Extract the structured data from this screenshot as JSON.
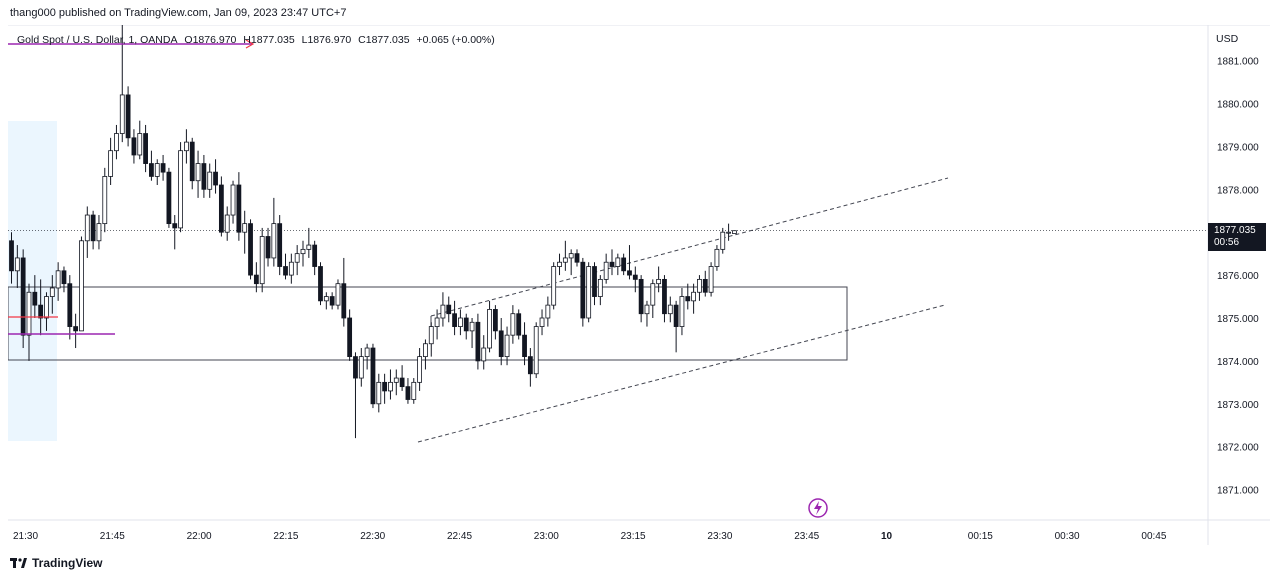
{
  "header": {
    "published": "thang000 published on TradingView.com, Jan 09, 2023 23:47 UTC+7"
  },
  "legend": {
    "symbol": "Gold Spot / U.S. Dollar, 1, OANDA",
    "open": "O1876.970",
    "high": "H1877.035",
    "low": "L1876.970",
    "close": "C1877.035",
    "change": "+0.065 (+0.00%)"
  },
  "axis": {
    "currency": "USD"
  },
  "last_price": {
    "value": "1877.035",
    "countdown": "00:56"
  },
  "footer": {
    "brand": "TradingView"
  },
  "colors": {
    "up": "#ffffff",
    "down": "#131722",
    "purple": "#9c27b0",
    "red": "#f23645",
    "zone": "#e3f2fd"
  },
  "chart_data": {
    "type": "candlestick",
    "ylim": [
      1870.5,
      1882.0
    ],
    "y_ticks": [
      "1881.000",
      "1880.000",
      "1879.000",
      "1878.000",
      "1877.000",
      "1876.000",
      "1875.000",
      "1874.000",
      "1873.000",
      "1872.000",
      "1871.000"
    ],
    "x_ticks": [
      "21:30",
      "21:45",
      "22:00",
      "22:15",
      "22:30",
      "22:45",
      "23:00",
      "23:15",
      "23:30",
      "23:45",
      "10",
      "00:15",
      "00:30",
      "00:45"
    ],
    "x_tick_bold": "10",
    "candles": [
      [
        1876.8,
        1877.0,
        1875.8,
        1876.1
      ],
      [
        1876.1,
        1876.7,
        1875.7,
        1876.4
      ],
      [
        1876.4,
        1876.6,
        1874.3,
        1874.6
      ],
      [
        1874.6,
        1875.8,
        1874.0,
        1875.6
      ],
      [
        1875.6,
        1876.0,
        1875.0,
        1875.3
      ],
      [
        1875.3,
        1875.9,
        1874.6,
        1875.0
      ],
      [
        1875.0,
        1875.6,
        1874.7,
        1875.5
      ],
      [
        1875.5,
        1876.0,
        1875.1,
        1875.7
      ],
      [
        1875.7,
        1876.3,
        1875.4,
        1876.1
      ],
      [
        1876.1,
        1876.2,
        1875.6,
        1875.8
      ],
      [
        1875.8,
        1876.0,
        1874.5,
        1874.8
      ],
      [
        1874.8,
        1875.1,
        1874.3,
        1874.7
      ],
      [
        1874.7,
        1876.9,
        1874.7,
        1876.8
      ],
      [
        1876.8,
        1877.6,
        1876.4,
        1877.4
      ],
      [
        1877.4,
        1877.5,
        1876.6,
        1876.8
      ],
      [
        1876.8,
        1877.4,
        1876.6,
        1877.2
      ],
      [
        1877.2,
        1878.5,
        1877.0,
        1878.3
      ],
      [
        1878.3,
        1879.2,
        1878.1,
        1878.9
      ],
      [
        1878.9,
        1879.5,
        1878.7,
        1879.3
      ],
      [
        1879.3,
        1882.4,
        1879.1,
        1880.2
      ],
      [
        1880.2,
        1880.4,
        1879.0,
        1879.2
      ],
      [
        1879.2,
        1879.4,
        1878.6,
        1878.8
      ],
      [
        1878.8,
        1879.6,
        1878.7,
        1879.3
      ],
      [
        1879.3,
        1879.5,
        1878.4,
        1878.6
      ],
      [
        1878.6,
        1878.9,
        1878.2,
        1878.3
      ],
      [
        1878.3,
        1878.7,
        1878.1,
        1878.6
      ],
      [
        1878.6,
        1878.8,
        1878.2,
        1878.4
      ],
      [
        1878.4,
        1878.5,
        1877.1,
        1877.2
      ],
      [
        1877.2,
        1877.4,
        1876.6,
        1877.1
      ],
      [
        1877.1,
        1879.1,
        1877.0,
        1878.9
      ],
      [
        1878.9,
        1879.4,
        1878.6,
        1879.1
      ],
      [
        1879.1,
        1879.2,
        1878.0,
        1878.2
      ],
      [
        1878.2,
        1878.9,
        1877.8,
        1878.6
      ],
      [
        1878.6,
        1878.8,
        1877.8,
        1878.0
      ],
      [
        1878.0,
        1878.6,
        1877.8,
        1878.4
      ],
      [
        1878.4,
        1878.7,
        1877.9,
        1878.1
      ],
      [
        1878.1,
        1878.3,
        1876.9,
        1877.0
      ],
      [
        1877.0,
        1877.6,
        1876.8,
        1877.4
      ],
      [
        1877.4,
        1878.2,
        1877.2,
        1878.1
      ],
      [
        1878.1,
        1878.4,
        1876.8,
        1877.0
      ],
      [
        1877.0,
        1877.5,
        1876.5,
        1877.2
      ],
      [
        1877.2,
        1877.3,
        1875.9,
        1876.0
      ],
      [
        1876.0,
        1876.3,
        1875.6,
        1875.8
      ],
      [
        1875.8,
        1877.1,
        1875.6,
        1876.9
      ],
      [
        1876.9,
        1877.1,
        1876.2,
        1876.4
      ],
      [
        1876.4,
        1877.8,
        1876.2,
        1877.2
      ],
      [
        1877.2,
        1877.4,
        1876.0,
        1876.2
      ],
      [
        1876.2,
        1876.5,
        1875.9,
        1876.0
      ],
      [
        1876.0,
        1876.5,
        1875.8,
        1876.3
      ],
      [
        1876.3,
        1876.7,
        1876.0,
        1876.5
      ],
      [
        1876.5,
        1876.8,
        1876.2,
        1876.6
      ],
      [
        1876.6,
        1877.1,
        1876.4,
        1876.7
      ],
      [
        1876.7,
        1876.8,
        1876.0,
        1876.2
      ],
      [
        1876.2,
        1876.3,
        1875.3,
        1875.4
      ],
      [
        1875.4,
        1875.6,
        1875.2,
        1875.5
      ],
      [
        1875.5,
        1875.6,
        1875.2,
        1875.3
      ],
      [
        1875.3,
        1875.9,
        1875.2,
        1875.8
      ],
      [
        1875.8,
        1876.4,
        1874.8,
        1875.0
      ],
      [
        1875.0,
        1875.2,
        1874.0,
        1874.1
      ],
      [
        1874.1,
        1874.2,
        1872.2,
        1873.6
      ],
      [
        1873.6,
        1874.3,
        1873.4,
        1874.1
      ],
      [
        1874.1,
        1874.4,
        1873.8,
        1874.3
      ],
      [
        1874.3,
        1874.4,
        1872.9,
        1873.0
      ],
      [
        1873.0,
        1873.7,
        1872.8,
        1873.5
      ],
      [
        1873.5,
        1873.7,
        1873.0,
        1873.3
      ],
      [
        1873.3,
        1873.8,
        1873.1,
        1873.5
      ],
      [
        1873.5,
        1873.8,
        1873.2,
        1873.6
      ],
      [
        1873.6,
        1873.9,
        1873.3,
        1873.4
      ],
      [
        1873.4,
        1873.6,
        1873.0,
        1873.1
      ],
      [
        1873.1,
        1873.6,
        1873.0,
        1873.5
      ],
      [
        1873.5,
        1874.3,
        1873.3,
        1874.1
      ],
      [
        1874.1,
        1874.5,
        1873.8,
        1874.4
      ],
      [
        1874.4,
        1874.9,
        1874.1,
        1874.8
      ],
      [
        1874.8,
        1875.2,
        1874.5,
        1875.0
      ],
      [
        1875.0,
        1875.6,
        1874.8,
        1875.3
      ],
      [
        1875.3,
        1875.5,
        1874.9,
        1875.1
      ],
      [
        1875.1,
        1875.4,
        1874.6,
        1874.8
      ],
      [
        1874.8,
        1875.2,
        1874.6,
        1875.0
      ],
      [
        1875.0,
        1875.1,
        1874.5,
        1874.7
      ],
      [
        1874.7,
        1875.0,
        1874.3,
        1874.9
      ],
      [
        1874.9,
        1875.1,
        1873.8,
        1874.0
      ],
      [
        1874.0,
        1874.6,
        1873.8,
        1874.3
      ],
      [
        1874.3,
        1875.4,
        1874.2,
        1875.2
      ],
      [
        1875.2,
        1875.3,
        1874.5,
        1874.7
      ],
      [
        1874.7,
        1875.0,
        1873.9,
        1874.1
      ],
      [
        1874.1,
        1874.8,
        1873.9,
        1874.6
      ],
      [
        1874.6,
        1875.3,
        1874.4,
        1875.1
      ],
      [
        1875.1,
        1875.2,
        1874.5,
        1874.6
      ],
      [
        1874.6,
        1874.9,
        1873.9,
        1874.1
      ],
      [
        1874.1,
        1874.3,
        1873.4,
        1873.7
      ],
      [
        1873.7,
        1874.9,
        1873.6,
        1874.8
      ],
      [
        1874.8,
        1875.2,
        1874.6,
        1875.0
      ],
      [
        1875.0,
        1875.5,
        1874.8,
        1875.3
      ],
      [
        1875.3,
        1876.3,
        1875.2,
        1876.2
      ],
      [
        1876.2,
        1876.5,
        1876.0,
        1876.3
      ],
      [
        1876.3,
        1876.8,
        1876.1,
        1876.4
      ],
      [
        1876.4,
        1876.6,
        1876.0,
        1876.5
      ],
      [
        1876.5,
        1876.6,
        1876.2,
        1876.3
      ],
      [
        1876.3,
        1876.4,
        1874.8,
        1875.0
      ],
      [
        1875.0,
        1876.3,
        1874.9,
        1876.2
      ],
      [
        1876.2,
        1876.3,
        1875.3,
        1875.5
      ],
      [
        1875.5,
        1876.0,
        1875.3,
        1875.9
      ],
      [
        1875.9,
        1876.5,
        1875.8,
        1876.3
      ],
      [
        1876.3,
        1876.6,
        1876.0,
        1876.2
      ],
      [
        1876.2,
        1876.5,
        1876.0,
        1876.4
      ],
      [
        1876.4,
        1876.5,
        1876.0,
        1876.1
      ],
      [
        1876.1,
        1876.7,
        1875.9,
        1876.0
      ],
      [
        1876.0,
        1876.2,
        1875.6,
        1875.9
      ],
      [
        1875.9,
        1876.0,
        1874.9,
        1875.1
      ],
      [
        1875.1,
        1875.4,
        1874.8,
        1875.3
      ],
      [
        1875.3,
        1875.9,
        1875.0,
        1875.8
      ],
      [
        1875.8,
        1876.2,
        1875.6,
        1875.9
      ],
      [
        1875.9,
        1876.0,
        1874.9,
        1875.1
      ],
      [
        1875.1,
        1875.5,
        1874.9,
        1875.3
      ],
      [
        1875.3,
        1875.4,
        1874.2,
        1874.8
      ],
      [
        1874.8,
        1875.7,
        1874.6,
        1875.5
      ],
      [
        1875.5,
        1875.8,
        1875.2,
        1875.4
      ],
      [
        1875.4,
        1875.8,
        1875.1,
        1875.6
      ],
      [
        1875.6,
        1876.0,
        1875.4,
        1875.9
      ],
      [
        1875.9,
        1876.1,
        1875.5,
        1875.6
      ],
      [
        1875.6,
        1876.3,
        1875.5,
        1876.2
      ],
      [
        1876.2,
        1876.7,
        1876.1,
        1876.6
      ],
      [
        1876.6,
        1877.1,
        1876.5,
        1877.0
      ],
      [
        1877.0,
        1877.2,
        1876.8,
        1877.0
      ],
      [
        1876.97,
        1877.035,
        1876.97,
        1877.035
      ]
    ]
  }
}
